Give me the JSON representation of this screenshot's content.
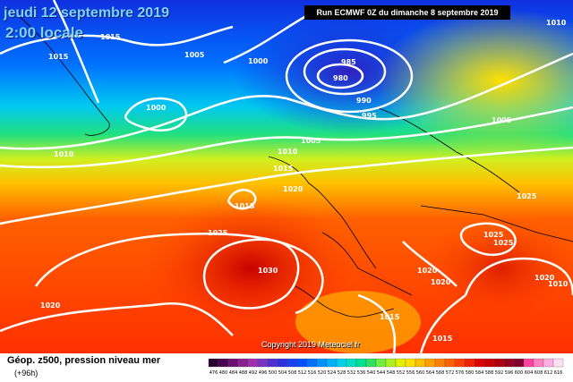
{
  "header": {
    "date": "jeudi 12 septembre 2019",
    "time": "2:00 locale",
    "run": "Run ECMWF 0Z du dimanche 8 septembre 2019"
  },
  "footer": {
    "title": "Géop. z500, pression niveau mer",
    "subtitle": "(+96h)",
    "copyright": "Copyright 2019 Meteociel.fr"
  },
  "isobar_labels": [
    "1015",
    "1015",
    "1005",
    "1000",
    "985",
    "980",
    "990",
    "995",
    "1000",
    "1010",
    "1005",
    "1010",
    "1015",
    "1020",
    "1015",
    "1025",
    "1030",
    "1020",
    "1025",
    "1025",
    "1020",
    "1020",
    "1015",
    "1015",
    "1020",
    "1010",
    "1005",
    "1025",
    "1010"
  ],
  "legend": {
    "values": [
      "476",
      "480",
      "484",
      "488",
      "492",
      "496",
      "500",
      "504",
      "508",
      "512",
      "516",
      "520",
      "524",
      "528",
      "532",
      "536",
      "540",
      "544",
      "548",
      "552",
      "556",
      "560",
      "564",
      "568",
      "572",
      "576",
      "580",
      "584",
      "588",
      "592",
      "596",
      "600",
      "604",
      "608",
      "612",
      "616"
    ],
    "colors": [
      "#2a0030",
      "#4a0050",
      "#6a1070",
      "#8a2090",
      "#a030b0",
      "#7a30c0",
      "#5030d0",
      "#3030e0",
      "#1a40f0",
      "#0050ff",
      "#0070ff",
      "#0090ff",
      "#00b0ff",
      "#00d0f0",
      "#00e0c0",
      "#00e090",
      "#30e060",
      "#70f040",
      "#b0f020",
      "#e0f000",
      "#ffe000",
      "#ffc000",
      "#ffa000",
      "#ff8000",
      "#ff6000",
      "#ff4000",
      "#f02000",
      "#e00000",
      "#c80000",
      "#b00010",
      "#980020",
      "#800030",
      "#ff40a0",
      "#ff80c0",
      "#ffb0e0",
      "#ffe0f0"
    ]
  }
}
